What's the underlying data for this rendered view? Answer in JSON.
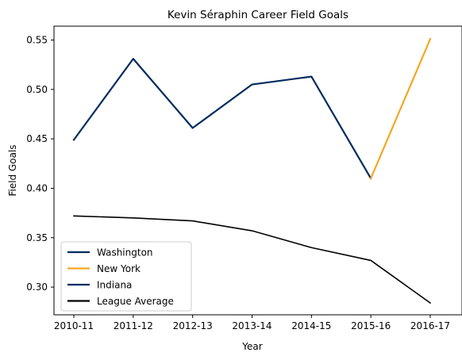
{
  "chart_data": {
    "type": "line",
    "title": "Kevin Séraphin Career Field Goals",
    "xlabel": "Year",
    "ylabel": "Field Goals",
    "categories": [
      "2010-11",
      "2011-12",
      "2012-13",
      "2013-14",
      "2014-15",
      "2015-16",
      "2016-17"
    ],
    "ylim": [
      0.272,
      0.564
    ],
    "yticks": [
      0.3,
      0.35,
      0.4,
      0.45,
      0.5,
      0.55
    ],
    "ytick_labels": [
      "0.30",
      "0.35",
      "0.40",
      "0.45",
      "0.50",
      "0.55"
    ],
    "grid": false,
    "legend_position": "lower-left",
    "series": [
      {
        "name": "Washington",
        "color": "#002B5C",
        "points": [
          [
            0,
            0.449
          ],
          [
            1,
            0.531
          ],
          [
            2,
            0.461
          ],
          [
            3,
            0.505
          ],
          [
            4,
            0.513
          ],
          [
            5,
            0.41
          ]
        ]
      },
      {
        "name": "New York",
        "color": "#F5A623",
        "points": [
          [
            5,
            0.41
          ],
          [
            6,
            0.551
          ]
        ]
      },
      {
        "name": "Indiana",
        "color": "#002D62",
        "points": [
          [
            6,
            0.551
          ]
        ]
      },
      {
        "name": "League Average",
        "color": "#000000",
        "points": [
          [
            0,
            0.372
          ],
          [
            1,
            0.37
          ],
          [
            2,
            0.367
          ],
          [
            3,
            0.357
          ],
          [
            4,
            0.34
          ],
          [
            5,
            0.327
          ],
          [
            6,
            0.284
          ]
        ]
      }
    ]
  }
}
